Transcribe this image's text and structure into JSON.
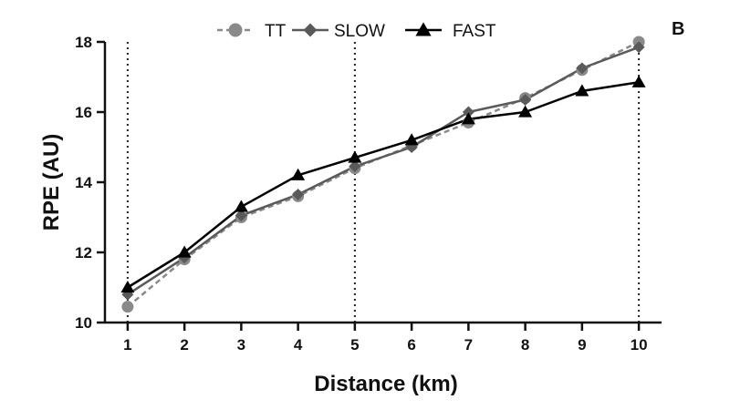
{
  "chart_data": {
    "type": "line",
    "panel_label": "B",
    "xlabel": "Distance (km)",
    "ylabel": "RPE (AU)",
    "x": [
      1,
      2,
      3,
      4,
      5,
      6,
      7,
      8,
      9,
      10
    ],
    "xlim": [
      1,
      10
    ],
    "ylim": [
      10,
      18
    ],
    "yticks": [
      10,
      12,
      14,
      16,
      18
    ],
    "reference_lines_x": [
      1,
      5,
      10
    ],
    "legend_position": "top-center",
    "series": [
      {
        "name": "TT",
        "marker": "circle",
        "line_style": "dashed",
        "color": "#8a8a8a",
        "values": [
          10.45,
          11.8,
          13.0,
          13.6,
          14.4,
          15.05,
          15.7,
          16.4,
          17.2,
          18.0
        ]
      },
      {
        "name": "SLOW",
        "marker": "diamond",
        "line_style": "solid",
        "color": "#5a5a5a",
        "values": [
          10.8,
          11.85,
          13.05,
          13.65,
          14.45,
          15.0,
          16.0,
          16.35,
          17.25,
          17.85
        ]
      },
      {
        "name": "FAST",
        "marker": "triangle",
        "line_style": "solid",
        "color": "#000000",
        "values": [
          11.0,
          12.0,
          13.3,
          14.2,
          14.7,
          15.2,
          15.8,
          16.0,
          16.6,
          16.85
        ]
      }
    ]
  }
}
